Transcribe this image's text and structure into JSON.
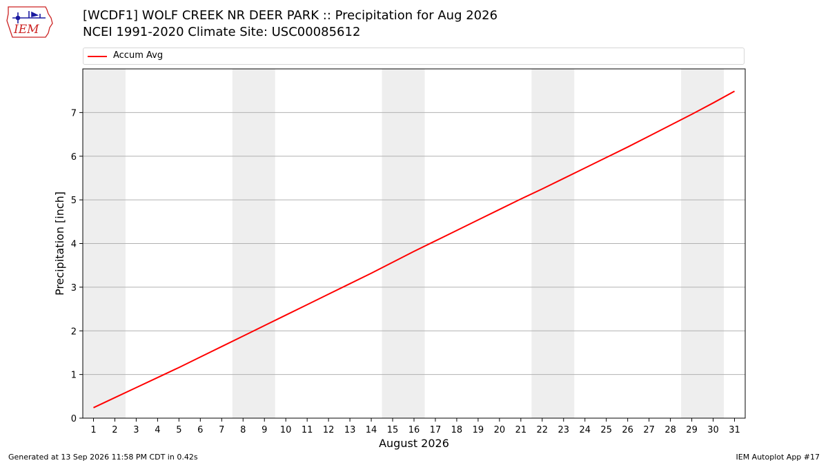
{
  "header": {
    "title": "[WCDF1] WOLF CREEK NR DEER PARK :: Precipitation for Aug 2026",
    "subtitle": "NCEI 1991-2020 Climate Site: USC00085612",
    "logo_text": "IEM"
  },
  "footer": {
    "generated": "Generated at 13 Sep 2026 11:58 PM CDT in 0.42s",
    "app": "IEM Autoplot App #17"
  },
  "colors": {
    "series": "#ff0000",
    "weekend_band": "#eeeeee",
    "grid": "#b0b0b0",
    "logo": "#cc2222",
    "logo_icon": "#1a1aa0"
  },
  "chart_data": {
    "type": "line",
    "xlabel": "August 2026",
    "ylabel": "Precipitation [inch]",
    "xlim": [
      0.5,
      31.5
    ],
    "ylim": [
      0,
      8
    ],
    "x": [
      1,
      2,
      3,
      4,
      5,
      6,
      7,
      8,
      9,
      10,
      11,
      12,
      13,
      14,
      15,
      16,
      17,
      18,
      19,
      20,
      21,
      22,
      23,
      24,
      25,
      26,
      27,
      28,
      29,
      30,
      31
    ],
    "xticks": [
      1,
      2,
      3,
      4,
      5,
      6,
      7,
      8,
      9,
      10,
      11,
      12,
      13,
      14,
      15,
      16,
      17,
      18,
      19,
      20,
      21,
      22,
      23,
      24,
      25,
      26,
      27,
      28,
      29,
      30,
      31
    ],
    "yticks": [
      0,
      1,
      2,
      3,
      4,
      5,
      6,
      7
    ],
    "grid": "horizontal",
    "legend": "top",
    "shaded_weekends": [
      [
        1,
        2
      ],
      [
        8,
        9
      ],
      [
        15,
        16
      ],
      [
        22,
        23
      ],
      [
        29,
        30
      ]
    ],
    "series": [
      {
        "name": "Accum Avg",
        "values": [
          0.24,
          0.47,
          0.7,
          0.93,
          1.16,
          1.4,
          1.64,
          1.88,
          2.12,
          2.36,
          2.6,
          2.84,
          3.08,
          3.32,
          3.57,
          3.82,
          4.06,
          4.3,
          4.54,
          4.78,
          5.02,
          5.25,
          5.49,
          5.73,
          5.97,
          6.21,
          6.46,
          6.71,
          6.96,
          7.22,
          7.49
        ]
      }
    ]
  }
}
